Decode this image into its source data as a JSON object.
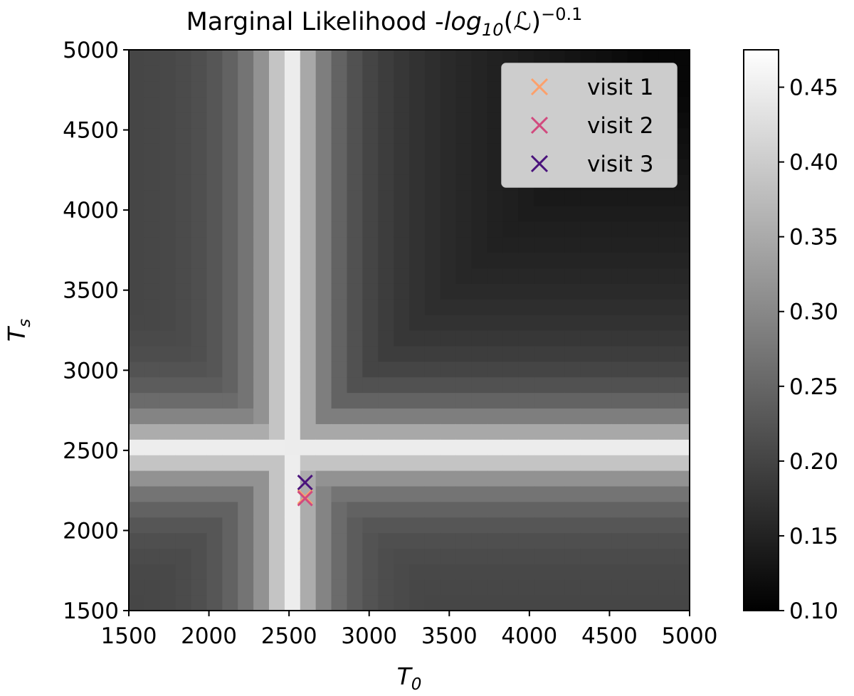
{
  "chart_data": {
    "type": "heatmap",
    "title": {
      "prefix": "Marginal Likelihood -",
      "log": "log",
      "log_sub": "10",
      "arg": "(ℒ)",
      "power": "−0.1"
    },
    "xlabel": {
      "main": "T",
      "sub": "0"
    },
    "ylabel": {
      "main": "T",
      "sub": "s"
    },
    "xlim": [
      1500,
      5000
    ],
    "ylim": [
      1500,
      5000
    ],
    "x_ticks": [
      "1500",
      "2000",
      "2500",
      "3000",
      "3500",
      "4000",
      "4500",
      "5000"
    ],
    "y_ticks": [
      "1500",
      "2000",
      "2500",
      "3000",
      "3500",
      "4000",
      "4500",
      "5000"
    ],
    "grid": false,
    "colormap": "gray",
    "color_range": [
      0.1,
      0.475
    ],
    "colorbar_ticks": [
      "0.10",
      "0.15",
      "0.20",
      "0.25",
      "0.30",
      "0.35",
      "0.40",
      "0.45"
    ],
    "grid_cells": {
      "nx": 36,
      "ny": 36
    },
    "field_model": {
      "center_T0": 2500,
      "center_Ts": 2500,
      "peak": 0.475,
      "decay_scale": 200,
      "floor": 0.2,
      "tail_slope": 4e-05,
      "min": 0.11
    },
    "legend": {
      "position": "upper right",
      "entries": [
        {
          "name": "visit 1",
          "color": "#fca06b"
        },
        {
          "name": "visit 2",
          "color": "#d14a7e"
        },
        {
          "name": "visit 3",
          "color": "#4a137c"
        }
      ]
    },
    "markers": [
      {
        "series": "visit 1",
        "x": 2600,
        "y": 2210,
        "color": "#fca06b"
      },
      {
        "series": "visit 2",
        "x": 2600,
        "y": 2200,
        "color": "#d14a7e"
      },
      {
        "series": "visit 3",
        "x": 2600,
        "y": 2300,
        "color": "#4a137c"
      }
    ]
  }
}
